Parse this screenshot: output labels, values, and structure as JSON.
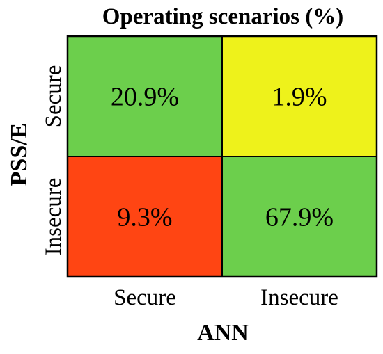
{
  "chart_data": {
    "type": "heatmap",
    "title": "Operating scenarios (%)",
    "xlabel": "ANN",
    "ylabel": "PSS/E",
    "x_categories": [
      "Secure",
      "Insecure"
    ],
    "y_categories": [
      "Secure",
      "Insecure"
    ],
    "cells": [
      {
        "row": 0,
        "col": 0,
        "value": 20.9,
        "label": "20.9%",
        "color": "#6ccf4c"
      },
      {
        "row": 0,
        "col": 1,
        "value": 1.9,
        "label": "1.9%",
        "color": "#eef21b"
      },
      {
        "row": 1,
        "col": 0,
        "value": 9.3,
        "label": "9.3%",
        "color": "#ff4513"
      },
      {
        "row": 1,
        "col": 1,
        "value": 67.9,
        "label": "67.9%",
        "color": "#6ccf4c"
      }
    ]
  }
}
